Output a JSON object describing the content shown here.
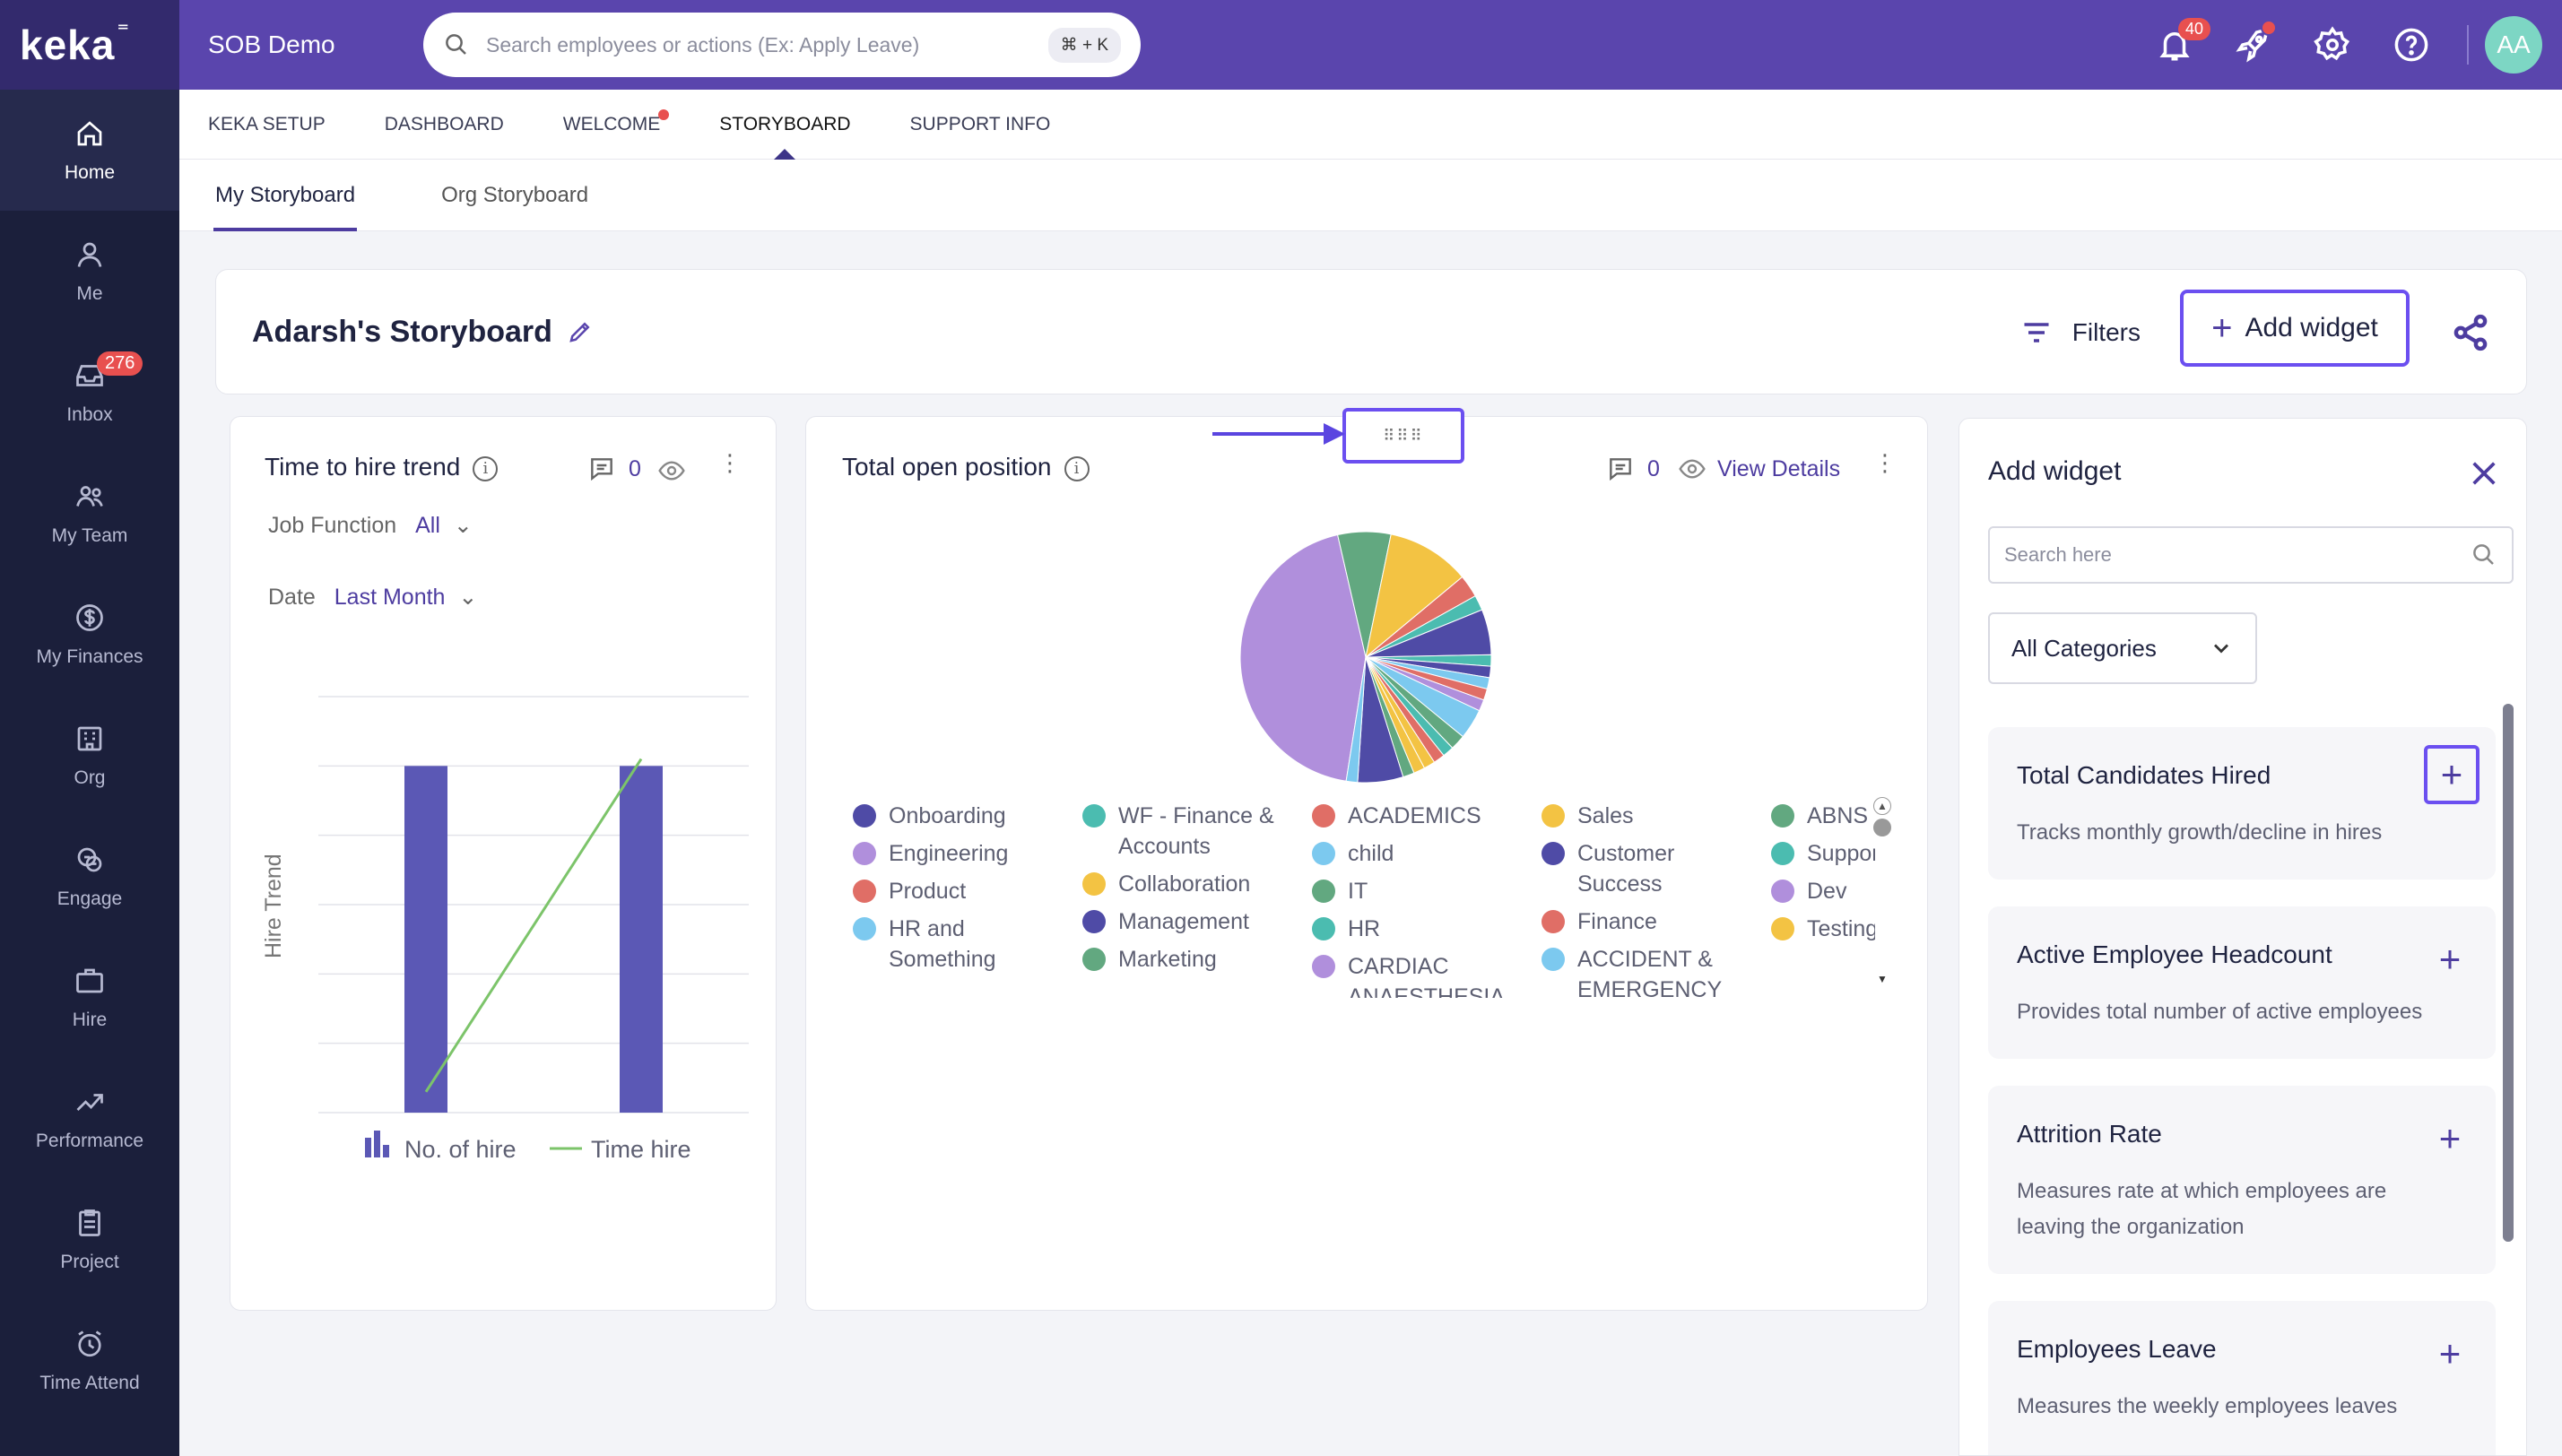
{
  "brand": {
    "logo": "keka"
  },
  "topbar": {
    "org_name": "SOB Demo",
    "search_placeholder": "Search employees or actions (Ex: Apply Leave)",
    "shortcut": "⌘ + K",
    "notification_count": "40",
    "avatar_initials": "AA"
  },
  "sidebar": {
    "items": [
      {
        "label": "Home",
        "icon": "home-icon"
      },
      {
        "label": "Me",
        "icon": "user-icon"
      },
      {
        "label": "Inbox",
        "icon": "inbox-icon",
        "badge": "276"
      },
      {
        "label": "My Team",
        "icon": "team-icon"
      },
      {
        "label": "My Finances",
        "icon": "dollar-icon"
      },
      {
        "label": "Org",
        "icon": "org-icon"
      },
      {
        "label": "Engage",
        "icon": "engage-icon"
      },
      {
        "label": "Hire",
        "icon": "briefcase-icon"
      },
      {
        "label": "Performance",
        "icon": "trend-icon"
      },
      {
        "label": "Project",
        "icon": "clipboard-icon"
      },
      {
        "label": "Time Attend",
        "icon": "clock-icon"
      }
    ]
  },
  "subnav": {
    "tabs": [
      "KEKA SETUP",
      "DASHBOARD",
      "WELCOME",
      "STORYBOARD",
      "SUPPORT INFO"
    ],
    "active": "STORYBOARD"
  },
  "subtabs": {
    "my": "My Storyboard",
    "org": "Org Storyboard"
  },
  "storyboard": {
    "title": "Adarsh's Storyboard",
    "filters_label": "Filters",
    "add_widget_label": "Add widget"
  },
  "widget_hire": {
    "title": "Time to hire trend",
    "comment_count": "0",
    "job_function_label": "Job Function",
    "job_function_value": "All",
    "date_label": "Date",
    "date_value": "Last Month",
    "ylabel": "Hire Trend",
    "legend_bar": "No. of hire",
    "legend_line": "Time hire"
  },
  "widget_open": {
    "title": "Total open position",
    "comment_count": "0",
    "view_details": "View Details"
  },
  "chart_data": [
    {
      "type": "bar",
      "title": "Time to hire trend",
      "ylabel": "Hire Trend",
      "series": [
        {
          "name": "No. of hire",
          "type": "bar",
          "values": [
            5,
            5
          ]
        },
        {
          "name": "Time hire",
          "type": "line",
          "values": [
            0.3,
            5.1
          ]
        }
      ],
      "categories": [
        "",
        ""
      ],
      "ylim": [
        0,
        6
      ],
      "grid": true,
      "legend": "bottom"
    },
    {
      "type": "pie",
      "title": "Total open position",
      "legend": "bottom",
      "slices": [
        {
          "label": "Engineering",
          "value": 45,
          "color": "#b08fdc"
        },
        {
          "label": "Marketing",
          "value": 7,
          "color": "#62a880"
        },
        {
          "label": "Testing",
          "value": 11,
          "color": "#f3c343"
        },
        {
          "label": "Product",
          "value": 3,
          "color": "#e06e66"
        },
        {
          "label": "Support",
          "value": 2,
          "color": "#4bbcb0"
        },
        {
          "label": "Management",
          "value": 6,
          "color": "#4f4ba6"
        },
        {
          "label": "WF - Finance & Accounts",
          "value": 1.5,
          "color": "#4bbcb0"
        },
        {
          "label": "Onboarding",
          "value": 1.5,
          "color": "#4f4ba6"
        },
        {
          "label": "child",
          "value": 1.5,
          "color": "#7cc9ef"
        },
        {
          "label": "ACADEMICS",
          "value": 1.5,
          "color": "#e06e66"
        },
        {
          "label": "Dev",
          "value": 1.5,
          "color": "#b08fdc"
        },
        {
          "label": "HR and Something",
          "value": 4,
          "color": "#7cc9ef"
        },
        {
          "label": "IT",
          "value": 2,
          "color": "#62a880"
        },
        {
          "label": "HR",
          "value": 1.5,
          "color": "#4bbcb0"
        },
        {
          "label": "Finance",
          "value": 1.5,
          "color": "#e06e66"
        },
        {
          "label": "Collaboration",
          "value": 1.5,
          "color": "#f3c343"
        },
        {
          "label": "Sales",
          "value": 1.5,
          "color": "#f3c343"
        },
        {
          "label": "ABNS",
          "value": 1.5,
          "color": "#62a880"
        },
        {
          "label": "Customer Success",
          "value": 6,
          "color": "#4f4ba6"
        },
        {
          "label": "ACCIDENT & EMERGENCY DEPT",
          "value": 1.5,
          "color": "#7cc9ef"
        }
      ]
    }
  ],
  "pie_legend_cols": [
    [
      {
        "label": "Onboarding",
        "color": "#4f4ba6"
      },
      {
        "label": "Engineering",
        "color": "#b08fdc"
      },
      {
        "label": "Product",
        "color": "#e06e66"
      },
      {
        "label": "HR and Something",
        "color": "#7cc9ef"
      }
    ],
    [
      {
        "label": "WF - Finance & Accounts",
        "color": "#4bbcb0"
      },
      {
        "label": "Collaboration",
        "color": "#f3c343"
      },
      {
        "label": "Management",
        "color": "#4f4ba6"
      },
      {
        "label": "Marketing",
        "color": "#62a880"
      }
    ],
    [
      {
        "label": "ACADEMICS",
        "color": "#e06e66"
      },
      {
        "label": "child",
        "color": "#7cc9ef"
      },
      {
        "label": "IT",
        "color": "#62a880"
      },
      {
        "label": "HR",
        "color": "#4bbcb0"
      },
      {
        "label": "CARDIAC ANAESTHESIA & ICU",
        "color": "#b08fdc"
      }
    ],
    [
      {
        "label": "Sales",
        "color": "#f3c343"
      },
      {
        "label": "Customer Success",
        "color": "#4f4ba6"
      },
      {
        "label": "Finance",
        "color": "#e06e66"
      },
      {
        "label": "ACCIDENT & EMERGENCY DEPT",
        "color": "#7cc9ef"
      }
    ],
    [
      {
        "label": "ABNS",
        "color": "#62a880"
      },
      {
        "label": "Support",
        "color": "#4bbcb0"
      },
      {
        "label": "Dev",
        "color": "#b08fdc"
      },
      {
        "label": "Testing",
        "color": "#f3c343"
      }
    ]
  ],
  "panel": {
    "title": "Add widget",
    "search_placeholder": "Search here",
    "category": "All Categories",
    "widgets": [
      {
        "title": "Total Candidates Hired",
        "desc": "Tracks monthly growth/decline in hires"
      },
      {
        "title": "Active Employee Headcount",
        "desc": "Provides total number of active employees"
      },
      {
        "title": "Attrition Rate",
        "desc": "Measures rate at which employees are leaving the organization"
      },
      {
        "title": "Employees Leave",
        "desc": "Measures the weekly employees leaves"
      }
    ]
  },
  "colors": {
    "brand": "#5a45ad",
    "sidebar": "#1b1f3b",
    "accent": "#6b4ff0",
    "bar": "#5b58b5",
    "line": "#7cc46a"
  }
}
